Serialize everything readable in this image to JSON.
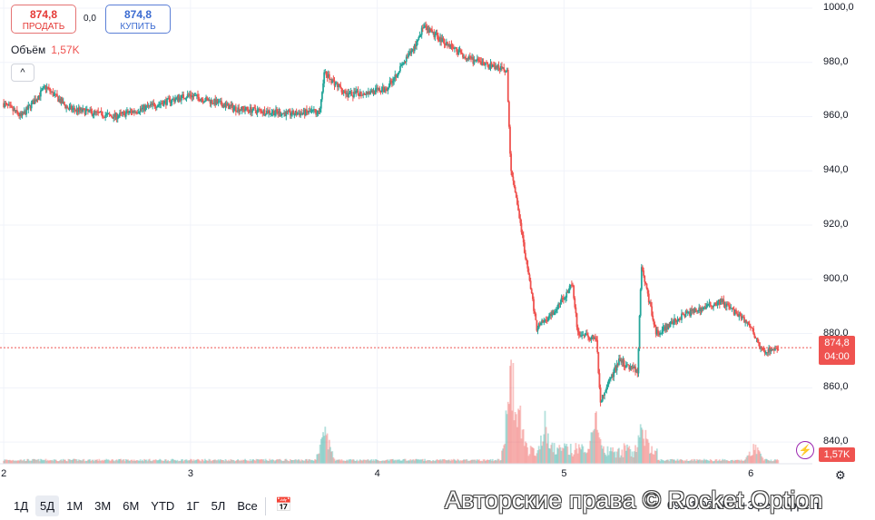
{
  "trade": {
    "sell_price": "874,8",
    "sell_label": "ПРОДАТЬ",
    "buy_price": "874,8",
    "buy_label": "КУПИТЬ",
    "spread": "0,0"
  },
  "volume_legend": {
    "label": "Объём",
    "value": "1,57K"
  },
  "price_tag": {
    "price": "874,8",
    "countdown": "04:00"
  },
  "volume_tag": "1,57K",
  "time_ranges": [
    "1Д",
    "5Д",
    "1М",
    "3М",
    "6М",
    "YTD",
    "1Г",
    "5Л",
    "Все"
  ],
  "active_range": "5Д",
  "clock_text": "09:41:00 UTC+3  рег  коррект",
  "copyright": "Авторские права © Rocket Option",
  "colors": {
    "up": "#26a69a",
    "down": "#ef5350",
    "price_line": "#ef5350"
  },
  "chart_data": {
    "type": "candlestick",
    "title": "",
    "xlabel": "",
    "ylabel": "",
    "y_ticks": [
      "1000,0",
      "980,0",
      "960,0",
      "940,0",
      "920,0",
      "900,0",
      "880,0",
      "860,0",
      "840,0"
    ],
    "ylim": [
      832,
      1003
    ],
    "x_ticks": [
      "2",
      "3",
      "4",
      "5",
      "6"
    ],
    "last_price": 874.8,
    "price_path": [
      {
        "day": 2.0,
        "price": 965
      },
      {
        "day": 2.1,
        "price": 960
      },
      {
        "day": 2.23,
        "price": 971
      },
      {
        "day": 2.35,
        "price": 963
      },
      {
        "day": 2.6,
        "price": 960
      },
      {
        "day": 3.0,
        "price": 968
      },
      {
        "day": 3.25,
        "price": 963
      },
      {
        "day": 3.55,
        "price": 961
      },
      {
        "day": 3.7,
        "price": 962
      },
      {
        "day": 3.72,
        "price": 976
      },
      {
        "day": 3.85,
        "price": 968
      },
      {
        "day": 4.05,
        "price": 970
      },
      {
        "day": 4.2,
        "price": 985
      },
      {
        "day": 4.25,
        "price": 993
      },
      {
        "day": 4.4,
        "price": 986
      },
      {
        "day": 4.5,
        "price": 981
      },
      {
        "day": 4.7,
        "price": 977
      },
      {
        "day": 4.72,
        "price": 942
      },
      {
        "day": 4.8,
        "price": 908
      },
      {
        "day": 4.86,
        "price": 882
      },
      {
        "day": 4.95,
        "price": 888
      },
      {
        "day": 5.05,
        "price": 898
      },
      {
        "day": 5.08,
        "price": 880
      },
      {
        "day": 5.18,
        "price": 878
      },
      {
        "day": 5.2,
        "price": 855
      },
      {
        "day": 5.3,
        "price": 870
      },
      {
        "day": 5.4,
        "price": 866
      },
      {
        "day": 5.42,
        "price": 905
      },
      {
        "day": 5.5,
        "price": 880
      },
      {
        "day": 5.65,
        "price": 887
      },
      {
        "day": 5.85,
        "price": 892
      },
      {
        "day": 6.0,
        "price": 883
      },
      {
        "day": 6.07,
        "price": 873
      },
      {
        "day": 6.15,
        "price": 874.8
      }
    ],
    "volume_spikes": [
      {
        "day": 3.72,
        "volume": 0.35
      },
      {
        "day": 4.72,
        "volume": 1.0
      },
      {
        "day": 4.76,
        "volume": 0.6
      },
      {
        "day": 4.9,
        "volume": 0.45
      },
      {
        "day": 5.17,
        "volume": 0.5
      },
      {
        "day": 5.2,
        "volume": 0.25
      },
      {
        "day": 5.42,
        "volume": 0.4
      },
      {
        "day": 6.02,
        "volume": 0.2
      }
    ],
    "grid": true
  }
}
